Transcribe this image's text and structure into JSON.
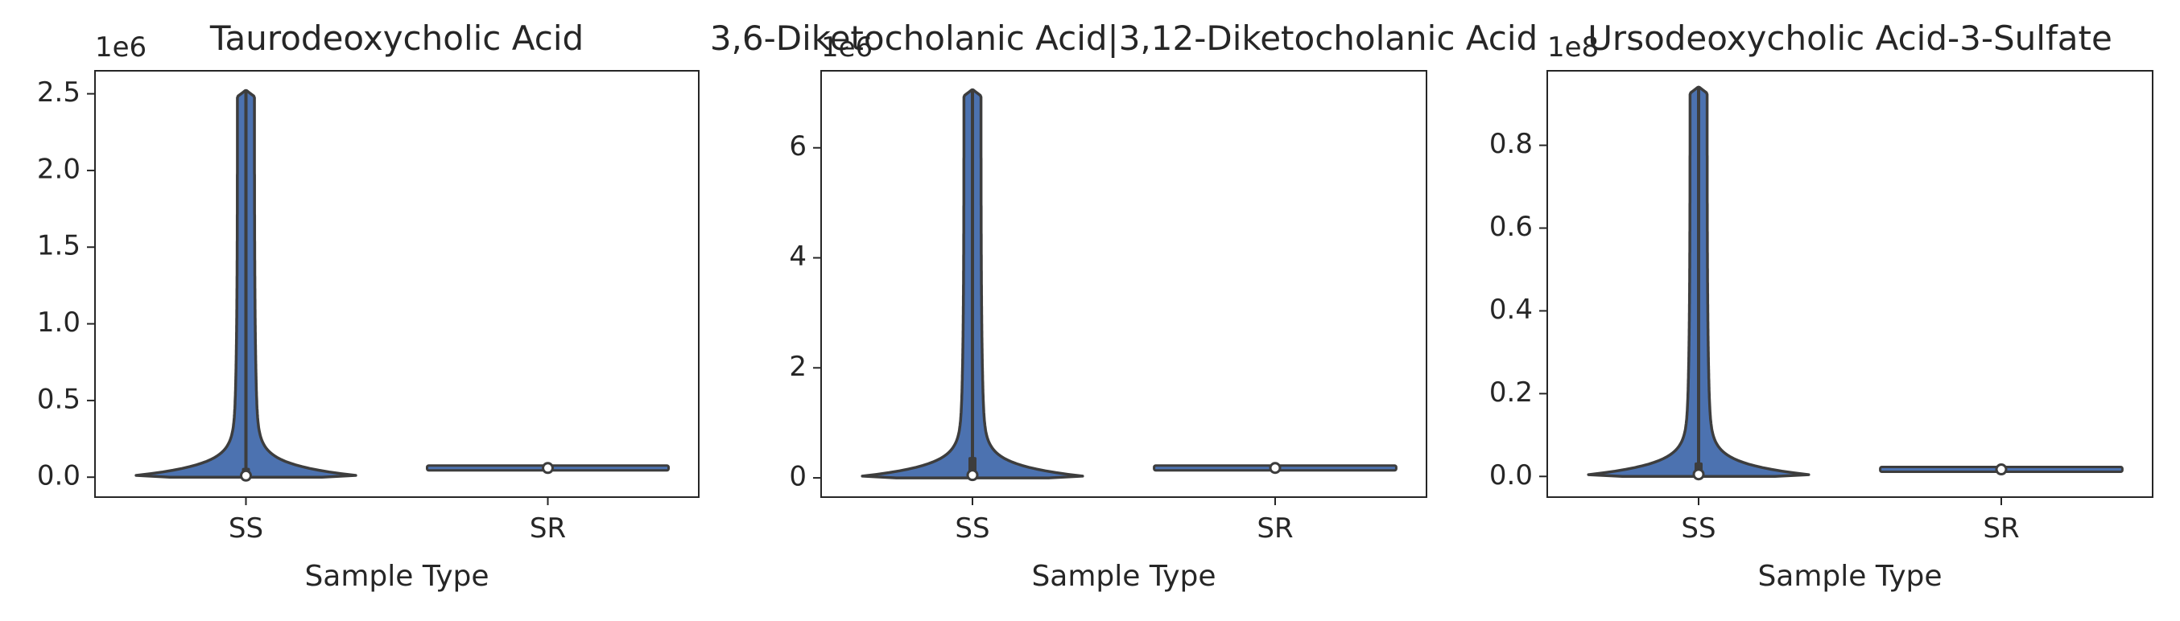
{
  "chart_data": [
    {
      "type": "violin",
      "title": "Taurodeoxycholic Acid",
      "xlabel": "Sample Type",
      "ylabel": "",
      "offset_text": "1e6",
      "categories": [
        "SS",
        "SR"
      ],
      "ylim": [
        -0.13,
        2.65
      ],
      "yticks": [
        0.0,
        0.5,
        1.0,
        1.5,
        2.0,
        2.5
      ],
      "ytick_labels": [
        "0.0",
        "0.5",
        "1.0",
        "1.5",
        "2.0",
        "2.5"
      ],
      "series": [
        {
          "category": "SS",
          "min": 0.0,
          "max": 2.52,
          "q1": 0.0,
          "median": 0.01,
          "q3": 0.05
        },
        {
          "category": "SR",
          "min": 0.055,
          "max": 0.065,
          "q1": 0.058,
          "median": 0.06,
          "q3": 0.062
        }
      ]
    },
    {
      "type": "violin",
      "title": "3,6-Diketocholanic Acid|3,12-Diketocholanic Acid",
      "xlabel": "Sample Type",
      "ylabel": "",
      "offset_text": "1e6",
      "categories": [
        "SS",
        "SR"
      ],
      "ylim": [
        -0.35,
        7.4
      ],
      "yticks": [
        0,
        2,
        4,
        6
      ],
      "ytick_labels": [
        "0",
        "2",
        "4",
        "6"
      ],
      "series": [
        {
          "category": "SS",
          "min": 0.0,
          "max": 7.05,
          "q1": 0.0,
          "median": 0.05,
          "q3": 0.35
        },
        {
          "category": "SR",
          "min": 0.15,
          "max": 0.22,
          "q1": 0.17,
          "median": 0.18,
          "q3": 0.2
        }
      ]
    },
    {
      "type": "violin",
      "title": "Ursodeoxycholic Acid-3-Sulfate",
      "xlabel": "Sample Type",
      "ylabel": "",
      "offset_text": "1e8",
      "categories": [
        "SS",
        "SR"
      ],
      "ylim": [
        -0.05,
        0.98
      ],
      "yticks": [
        0.0,
        0.2,
        0.4,
        0.6,
        0.8
      ],
      "ytick_labels": [
        "0.0",
        "0.2",
        "0.4",
        "0.6",
        "0.8"
      ],
      "series": [
        {
          "category": "SS",
          "min": 0.0,
          "max": 0.94,
          "q1": 0.0,
          "median": 0.005,
          "q3": 0.03
        },
        {
          "category": "SR",
          "min": 0.015,
          "max": 0.02,
          "q1": 0.016,
          "median": 0.017,
          "q3": 0.019
        }
      ]
    }
  ],
  "colors": {
    "violin_fill": "#4c72b0",
    "violin_edge": "#3d3d3d",
    "axis": "#262626",
    "text": "#262626",
    "median_marker": "#ffffff"
  }
}
